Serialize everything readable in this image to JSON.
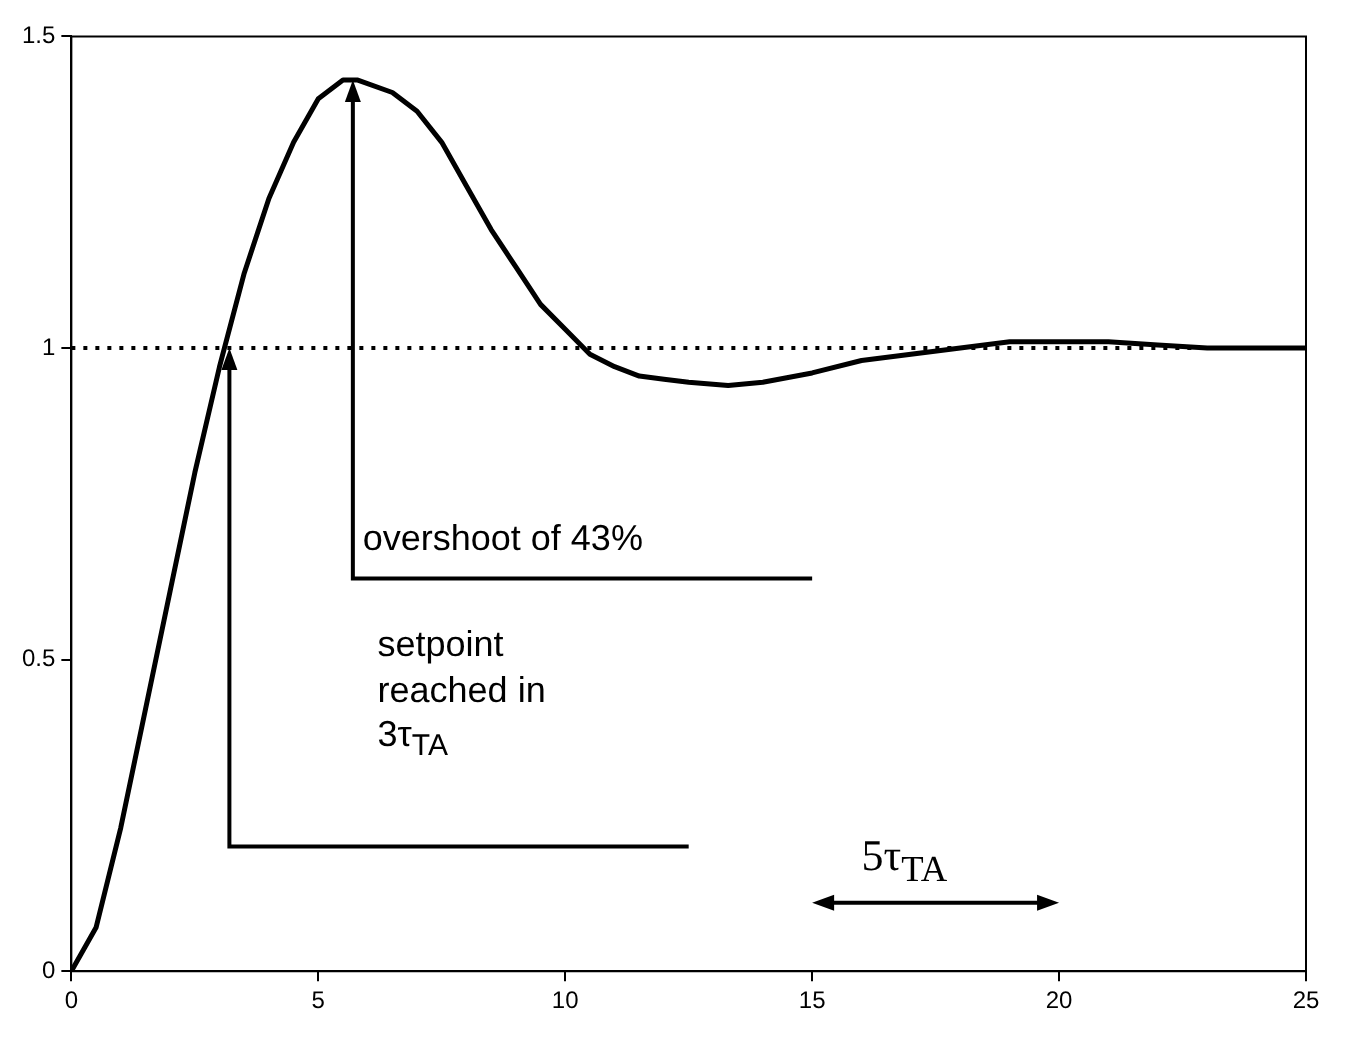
{
  "chart_data": {
    "type": "line",
    "x": [
      0,
      0.5,
      1,
      1.5,
      2,
      2.5,
      3,
      3.5,
      4,
      4.5,
      5,
      5.5,
      5.8,
      6.5,
      7,
      7.5,
      8,
      8.5,
      9,
      9.5,
      10,
      10.5,
      11,
      11.5,
      12,
      12.5,
      13.3,
      14,
      15,
      16,
      17,
      18,
      19,
      20,
      21,
      22,
      23,
      24,
      25
    ],
    "series": [
      {
        "color": "#000000",
        "values": [
          0,
          0.07,
          0.23,
          0.42,
          0.61,
          0.8,
          0.97,
          1.12,
          1.24,
          1.33,
          1.4,
          1.43,
          1.43,
          1.41,
          1.38,
          1.33,
          1.26,
          1.19,
          1.13,
          1.07,
          1.03,
          0.99,
          0.97,
          0.955,
          0.95,
          0.945,
          0.94,
          0.945,
          0.96,
          0.98,
          0.99,
          1.0,
          1.01,
          1.01,
          1.01,
          1.005,
          1.0,
          1.0,
          1.0
        ]
      }
    ],
    "xlim": [
      0,
      25
    ],
    "xticks": [
      0,
      5,
      10,
      15,
      20,
      25
    ],
    "ylim": [
      0,
      1.5
    ],
    "yticks": [
      0,
      0.5,
      1,
      1.5
    ],
    "grid": false,
    "legend": false,
    "marker": "none",
    "line_style": "solid",
    "ref_lines": [
      {
        "axis": "y",
        "value": 1,
        "color": "#000000",
        "line_style": "dotted"
      }
    ],
    "annotations": [
      "setpoint reached in 3τ$_{TA}$",
      "overshoot of 43%",
      "5τ$_{TA}$"
    ]
  }
}
